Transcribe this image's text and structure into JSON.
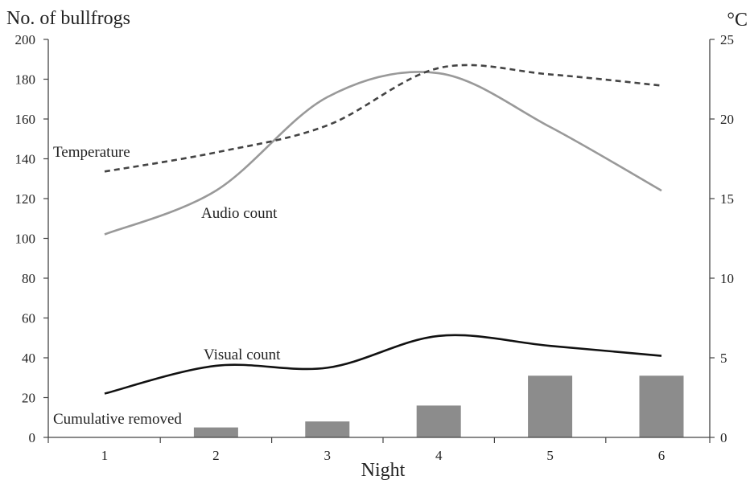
{
  "chart_data": {
    "type": "line",
    "title": "",
    "xlabel": "Night",
    "ylabel": "No. of bullfrogs",
    "y2label": "°C",
    "x": [
      1,
      2,
      3,
      4,
      5,
      6
    ],
    "ylim": [
      0,
      200
    ],
    "y2lim": [
      0,
      25
    ],
    "yticks": [
      "0",
      "20",
      "40",
      "60",
      "80",
      "100",
      "120",
      "140",
      "160",
      "180",
      "200"
    ],
    "y2ticks": [
      "0",
      "5",
      "10",
      "15",
      "20",
      "25"
    ],
    "xticks": [
      "1",
      "2",
      "3",
      "4",
      "5",
      "6"
    ],
    "grid": false,
    "series": [
      {
        "name": "Audio count",
        "type": "line",
        "axis": "left",
        "style": "solid",
        "color": "#999999",
        "values": [
          102,
          124,
          171,
          183,
          156,
          124
        ]
      },
      {
        "name": "Visual count",
        "type": "line",
        "axis": "left",
        "style": "solid",
        "color": "#111111",
        "values": [
          22,
          36,
          35,
          51,
          46,
          41
        ]
      },
      {
        "name": "Temperature",
        "type": "line",
        "axis": "right",
        "style": "dashed",
        "color": "#444444",
        "values": [
          16.7,
          17.9,
          19.6,
          23.2,
          22.8,
          22.1
        ]
      },
      {
        "name": "Cumulative removed",
        "type": "bar",
        "axis": "left",
        "color": "#8c8c8c",
        "values": [
          0,
          5,
          8,
          16,
          31,
          31
        ]
      }
    ]
  }
}
